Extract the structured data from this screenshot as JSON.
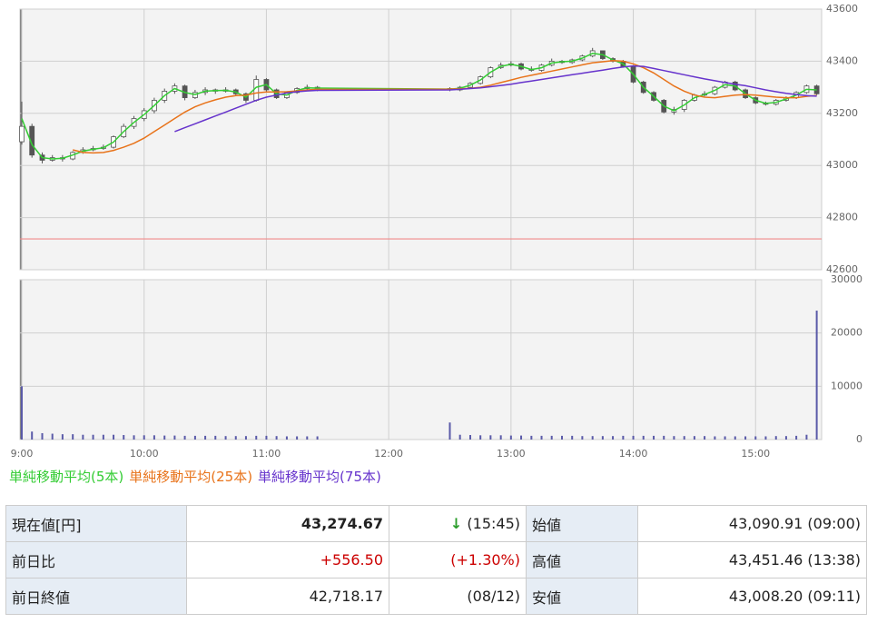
{
  "chart_data": {
    "type": "candlestick",
    "xlim": [
      8.985,
      15.54
    ],
    "xticks": [
      {
        "value": 9,
        "label": "9:00"
      },
      {
        "value": 10,
        "label": "10:00"
      },
      {
        "value": 11,
        "label": "11:00"
      },
      {
        "value": 12,
        "label": "12:00"
      },
      {
        "value": 13,
        "label": "13:00"
      },
      {
        "value": 14,
        "label": "14:00"
      },
      {
        "value": 15,
        "label": "15:00"
      }
    ],
    "ylim": [
      42600,
      43600
    ],
    "yticks": [
      42600,
      42800,
      43000,
      43200,
      43400,
      43600
    ],
    "grid": true,
    "up_color": "#ffffff",
    "down_color": "#555555",
    "wick_color": "#555555",
    "reference_value": 42718.17,
    "reference_color": "#f08a8a",
    "candles": {
      "x": [
        9,
        9.083,
        9.167,
        9.25,
        9.333,
        9.417,
        9.5,
        9.583,
        9.667,
        9.75,
        9.833,
        9.917,
        10,
        10.083,
        10.167,
        10.25,
        10.333,
        10.417,
        10.5,
        10.583,
        10.667,
        10.75,
        10.833,
        10.917,
        11,
        11.083,
        11.167,
        11.25,
        11.333,
        11.417,
        12.5,
        12.583,
        12.667,
        12.75,
        12.833,
        12.917,
        13,
        13.083,
        13.167,
        13.25,
        13.333,
        13.417,
        13.5,
        13.583,
        13.667,
        13.75,
        13.833,
        13.917,
        14,
        14.083,
        14.167,
        14.25,
        14.333,
        14.417,
        14.5,
        14.583,
        14.667,
        14.75,
        14.833,
        14.917,
        15,
        15.083,
        15.167,
        15.25,
        15.333,
        15.417,
        15.5
      ],
      "open": [
        43091,
        43150,
        43040,
        43020,
        43030,
        43025,
        43050,
        43060,
        43065,
        43070,
        43110,
        43150,
        43180,
        43210,
        43250,
        43285,
        43305,
        43260,
        43280,
        43290,
        43285,
        43290,
        43275,
        43250,
        43330,
        43290,
        43260,
        43280,
        43295,
        43300,
        43295,
        43290,
        43300,
        43315,
        43340,
        43375,
        43385,
        43390,
        43370,
        43365,
        43385,
        43400,
        43395,
        43405,
        43420,
        43440,
        43410,
        43400,
        43380,
        43320,
        43280,
        43250,
        43205,
        43215,
        43250,
        43270,
        43275,
        43300,
        43320,
        43290,
        43260,
        43240,
        43235,
        43250,
        43260,
        43280,
        43305
      ],
      "high": [
        43245,
        43160,
        43050,
        43040,
        43040,
        43055,
        43070,
        43075,
        43080,
        43115,
        43160,
        43190,
        43220,
        43260,
        43295,
        43315,
        43310,
        43290,
        43300,
        43295,
        43300,
        43295,
        43280,
        43345,
        43335,
        43295,
        43285,
        43300,
        43310,
        43305,
        43300,
        43305,
        43320,
        43345,
        43380,
        43395,
        43400,
        43395,
        43380,
        43390,
        43410,
        43405,
        43410,
        43425,
        43451,
        43440,
        43415,
        43405,
        43385,
        43325,
        43285,
        43255,
        43225,
        43255,
        43275,
        43285,
        43305,
        43325,
        43325,
        43295,
        43265,
        43245,
        43255,
        43265,
        43285,
        43310,
        43310
      ],
      "low": [
        43080,
        43030,
        43008,
        43015,
        43015,
        43020,
        43045,
        43055,
        43060,
        43065,
        43105,
        43140,
        43170,
        43200,
        43240,
        43275,
        43250,
        43255,
        43270,
        43275,
        43280,
        43270,
        43240,
        43245,
        43280,
        43255,
        43255,
        43275,
        43290,
        43285,
        43285,
        43285,
        43295,
        43310,
        43335,
        43370,
        43380,
        43365,
        43360,
        43360,
        43380,
        43390,
        43390,
        43400,
        43415,
        43405,
        43395,
        43375,
        43315,
        43275,
        43245,
        43200,
        43195,
        43205,
        43245,
        43265,
        43270,
        43295,
        43285,
        43255,
        43235,
        43230,
        43230,
        43245,
        43255,
        43275,
        43270
      ],
      "close": [
        43150,
        43040,
        43020,
        43030,
        43025,
        43050,
        43060,
        43065,
        43070,
        43110,
        43150,
        43180,
        43210,
        43250,
        43285,
        43305,
        43260,
        43280,
        43290,
        43285,
        43290,
        43275,
        43250,
        43330,
        43290,
        43260,
        43280,
        43295,
        43300,
        43295,
        43290,
        43300,
        43315,
        43340,
        43375,
        43385,
        43390,
        43370,
        43365,
        43385,
        43400,
        43395,
        43405,
        43420,
        43440,
        43410,
        43400,
        43380,
        43320,
        43280,
        43250,
        43205,
        43215,
        43250,
        43270,
        43275,
        43300,
        43320,
        43290,
        43260,
        43240,
        43235,
        43250,
        43260,
        43280,
        43305,
        43275
      ]
    },
    "series": [
      {
        "name": "単純移動平均(5本)",
        "color": "#33cc33",
        "values": [
          43180,
          43080,
          43030,
          43025,
          43028,
          43040,
          43055,
          43062,
          43068,
          43090,
          43130,
          43165,
          43195,
          43230,
          43268,
          43295,
          43280,
          43272,
          43285,
          43287,
          43288,
          43282,
          43262,
          43300,
          43310,
          43275,
          43270,
          43288,
          43298,
          43297,
          43293,
          43296,
          43308,
          43328,
          43358,
          43380,
          43388,
          43380,
          43368,
          43375,
          43393,
          43398,
          43400,
          43412,
          43430,
          43425,
          43405,
          43390,
          43350,
          43300,
          43265,
          43228,
          43210,
          43232,
          43260,
          43272,
          43288,
          43310,
          43305,
          43275,
          43250,
          43238,
          43242,
          43255,
          43270,
          43292,
          43290
        ]
      },
      {
        "name": "単純移動平均(25本)",
        "color": "#e8731a",
        "values": [
          null,
          null,
          null,
          null,
          null,
          43060,
          43050,
          43048,
          43050,
          43058,
          43070,
          43085,
          43105,
          43130,
          43155,
          43180,
          43205,
          43225,
          43240,
          43252,
          43262,
          43268,
          43270,
          43278,
          43282,
          43282,
          43283,
          43286,
          43290,
          43292,
          43293,
          43294,
          43296,
          43300,
          43308,
          43318,
          43328,
          43338,
          43346,
          43354,
          43362,
          43370,
          43378,
          43386,
          43394,
          43398,
          43402,
          43400,
          43390,
          43375,
          43355,
          43330,
          43305,
          43285,
          43270,
          43262,
          43260,
          43265,
          43270,
          43272,
          43270,
          43266,
          43262,
          43260,
          43260,
          43265,
          43268
        ]
      },
      {
        "name": "単純移動平均(75本)",
        "color": "#6633cc",
        "values": [
          null,
          null,
          null,
          null,
          null,
          null,
          null,
          null,
          null,
          null,
          null,
          null,
          null,
          null,
          null,
          43130,
          43145,
          43160,
          43175,
          43190,
          43205,
          43220,
          43235,
          43250,
          43262,
          43270,
          43278,
          43283,
          43286,
          43288,
          43290,
          43292,
          43295,
          43298,
          43302,
          43307,
          43312,
          43318,
          43324,
          43330,
          43336,
          43342,
          43348,
          43354,
          43360,
          43366,
          43372,
          43378,
          43382,
          43380,
          43372,
          43364,
          43356,
          43348,
          43340,
          43332,
          43325,
          43318,
          43312,
          43306,
          43298,
          43290,
          43283,
          43277,
          43272,
          43268,
          43266
        ]
      }
    ],
    "volume": {
      "color": "#5a5aa8",
      "ylim": [
        0,
        30000
      ],
      "yticks": [
        0,
        10000,
        20000,
        30000
      ],
      "values": [
        10000,
        1500,
        1200,
        1100,
        1000,
        1000,
        900,
        900,
        900,
        900,
        850,
        800,
        800,
        800,
        750,
        750,
        700,
        700,
        700,
        700,
        650,
        650,
        650,
        700,
        700,
        650,
        600,
        600,
        600,
        600,
        3200,
        900,
        850,
        800,
        800,
        800,
        750,
        750,
        700,
        700,
        700,
        700,
        700,
        650,
        650,
        650,
        650,
        700,
        700,
        700,
        700,
        700,
        650,
        650,
        650,
        650,
        600,
        600,
        600,
        600,
        600,
        600,
        650,
        650,
        700,
        900,
        24200
      ]
    }
  },
  "table": {
    "rows": [
      {
        "label": "現在値[円]",
        "value": "43,274.67",
        "arrow": "↓",
        "sub": "(15:45)",
        "label2": "始値",
        "value2": "43,090.91 (09:00)"
      },
      {
        "label": "前日比",
        "value": "+556.50",
        "sub": "(+1.30%)",
        "label2": "高値",
        "value2": "43,451.46 (13:38)"
      },
      {
        "label": "前日終値",
        "value": "42,718.17",
        "sub": "(08/12)",
        "label2": "安値",
        "value2": "43,008.20 (09:11)"
      }
    ]
  }
}
